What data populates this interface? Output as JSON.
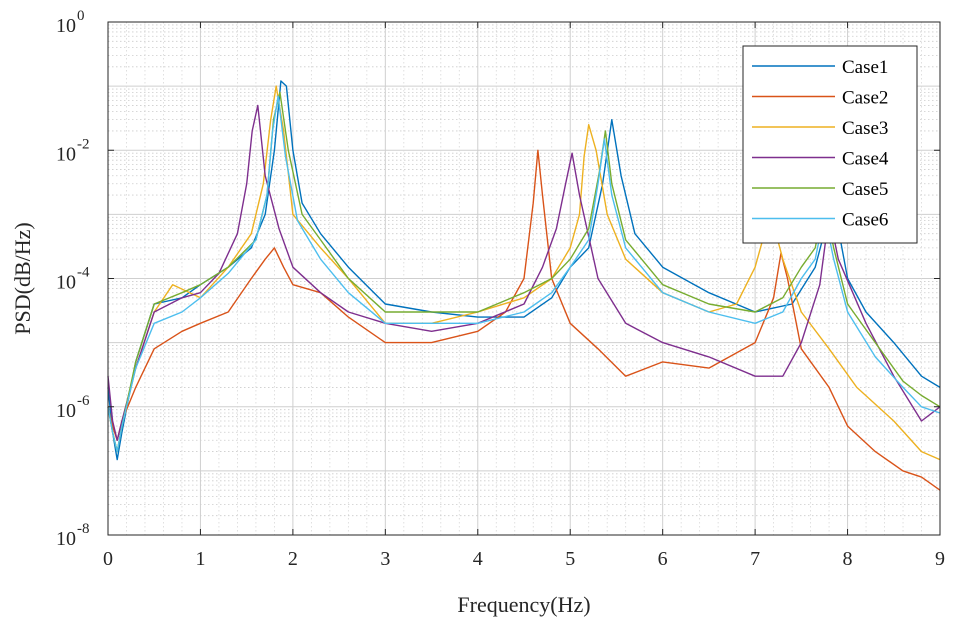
{
  "chart_data": {
    "type": "line",
    "title": "",
    "xlabel": "Frequency(Hz)",
    "ylabel": "PSD(dB/Hz)",
    "xlim": [
      0,
      9
    ],
    "ylim": [
      1e-08,
      1
    ],
    "yscale": "log",
    "grid": "major and minor, dotted",
    "legend_position": "top-right",
    "x_ticks": [
      "0",
      "1",
      "2",
      "3",
      "4",
      "5",
      "6",
      "7",
      "8",
      "9"
    ],
    "y_ticks": [
      {
        "base": "10",
        "exp": "-8",
        "value": 1e-08
      },
      {
        "base": "10",
        "exp": "-6",
        "value": 1e-06
      },
      {
        "base": "10",
        "exp": "-4",
        "value": 0.0001
      },
      {
        "base": "10",
        "exp": "-2",
        "value": 0.01
      },
      {
        "base": "10",
        "exp": "0",
        "value": 1
      }
    ],
    "series": [
      {
        "name": "Case1",
        "color": "#0072BD",
        "x": [
          0,
          0.05,
          0.1,
          0.15,
          0.3,
          0.5,
          0.8,
          1.0,
          1.3,
          1.55,
          1.7,
          1.8,
          1.87,
          1.93,
          2.0,
          2.1,
          2.3,
          2.6,
          3.0,
          3.5,
          4.0,
          4.5,
          4.8,
          5.0,
          5.2,
          5.35,
          5.45,
          5.55,
          5.7,
          6.0,
          6.5,
          7.0,
          7.4,
          7.65,
          7.8,
          7.9,
          8.0,
          8.2,
          8.5,
          8.8,
          9.0
        ],
        "y": [
          2e-06,
          4e-07,
          1.5e-07,
          4e-07,
          5e-06,
          4e-05,
          5e-05,
          8e-05,
          0.00015,
          0.0003,
          0.001,
          0.01,
          0.12,
          0.1,
          0.01,
          0.0015,
          0.0005,
          0.00015,
          4e-05,
          3e-05,
          2.5e-05,
          2.5e-05,
          5e-05,
          0.00015,
          0.0003,
          0.003,
          0.03,
          0.004,
          0.0005,
          0.00015,
          6e-05,
          3e-05,
          4e-05,
          0.00015,
          0.001,
          0.0006,
          0.0001,
          3e-05,
          1e-05,
          3e-06,
          2e-06
        ]
      },
      {
        "name": "Case2",
        "color": "#D95319",
        "x": [
          0,
          0.05,
          0.1,
          0.15,
          0.3,
          0.5,
          0.8,
          1.0,
          1.3,
          1.55,
          1.7,
          1.8,
          1.9,
          2.0,
          2.3,
          2.6,
          3.0,
          3.5,
          4.0,
          4.3,
          4.5,
          4.6,
          4.65,
          4.7,
          4.8,
          5.0,
          5.3,
          5.6,
          6.0,
          6.5,
          7.0,
          7.2,
          7.28,
          7.35,
          7.5,
          7.8,
          8.0,
          8.3,
          8.6,
          8.8,
          9.0
        ],
        "y": [
          1e-06,
          5e-07,
          3e-07,
          6e-07,
          2e-06,
          8e-06,
          1.5e-05,
          2e-05,
          3e-05,
          0.0001,
          0.0002,
          0.0003,
          0.00015,
          8e-05,
          6e-05,
          2.5e-05,
          1e-05,
          1e-05,
          1.5e-05,
          3e-05,
          0.0001,
          0.0015,
          0.01,
          0.002,
          0.0001,
          2e-05,
          8e-06,
          3e-06,
          5e-06,
          4e-06,
          1e-05,
          5e-05,
          0.00025,
          0.0001,
          8e-06,
          2e-06,
          5e-07,
          2e-07,
          1e-07,
          8e-08,
          5e-08
        ]
      },
      {
        "name": "Case3",
        "color": "#EDB120",
        "x": [
          0,
          0.05,
          0.1,
          0.15,
          0.3,
          0.5,
          0.7,
          1.0,
          1.3,
          1.55,
          1.68,
          1.76,
          1.82,
          1.9,
          2.0,
          2.3,
          2.6,
          3.0,
          3.5,
          4.0,
          4.5,
          4.8,
          5.0,
          5.1,
          5.15,
          5.2,
          5.28,
          5.4,
          5.6,
          6.0,
          6.5,
          6.8,
          7.0,
          7.1,
          7.2,
          7.3,
          7.5,
          7.8,
          8.1,
          8.5,
          8.8,
          9.0
        ],
        "y": [
          1e-06,
          4e-07,
          2e-07,
          5e-07,
          4e-06,
          3e-05,
          8e-05,
          5e-05,
          0.00015,
          0.0005,
          0.003,
          0.03,
          0.1,
          0.02,
          0.001,
          0.0003,
          0.0001,
          2e-05,
          2e-05,
          3e-05,
          5e-05,
          0.0001,
          0.0003,
          0.001,
          0.008,
          0.025,
          0.01,
          0.001,
          0.0002,
          6e-05,
          3e-05,
          4e-05,
          0.00015,
          0.0005,
          0.0007,
          0.0002,
          3e-05,
          8e-06,
          2e-06,
          6e-07,
          2e-07,
          1.5e-07
        ]
      },
      {
        "name": "Case4",
        "color": "#7E2F8E",
        "x": [
          0,
          0.05,
          0.1,
          0.15,
          0.3,
          0.5,
          0.8,
          1.0,
          1.2,
          1.4,
          1.5,
          1.56,
          1.62,
          1.7,
          1.85,
          2.0,
          2.3,
          2.6,
          3.0,
          3.5,
          4.0,
          4.5,
          4.7,
          4.85,
          4.95,
          5.02,
          5.1,
          5.3,
          5.6,
          6.0,
          6.5,
          7.0,
          7.3,
          7.5,
          7.7,
          7.8,
          7.9,
          8.2,
          8.5,
          8.8,
          9.0
        ],
        "y": [
          3e-06,
          6e-07,
          3e-07,
          6e-07,
          4e-06,
          3e-05,
          5e-05,
          6e-05,
          0.00012,
          0.0005,
          0.003,
          0.02,
          0.05,
          0.004,
          0.0006,
          0.00015,
          6e-05,
          3e-05,
          2e-05,
          1.5e-05,
          2e-05,
          4e-05,
          0.00015,
          0.0006,
          0.003,
          0.009,
          0.002,
          0.0001,
          2e-05,
          1e-05,
          6e-06,
          3e-06,
          3e-06,
          1e-05,
          8e-05,
          0.001,
          0.0002,
          2e-05,
          3e-06,
          6e-07,
          1e-06
        ]
      },
      {
        "name": "Case5",
        "color": "#77AC30",
        "x": [
          0,
          0.05,
          0.1,
          0.15,
          0.3,
          0.5,
          0.8,
          1.0,
          1.3,
          1.6,
          1.72,
          1.79,
          1.86,
          1.95,
          2.1,
          2.3,
          2.6,
          3.0,
          3.5,
          4.0,
          4.5,
          4.8,
          5.0,
          5.2,
          5.32,
          5.38,
          5.45,
          5.6,
          6.0,
          6.5,
          7.0,
          7.3,
          7.5,
          7.65,
          7.75,
          7.85,
          8.0,
          8.3,
          8.6,
          8.8,
          9.0
        ],
        "y": [
          1e-06,
          4e-07,
          2e-07,
          5e-07,
          5e-06,
          4e-05,
          6e-05,
          8e-05,
          0.00015,
          0.0004,
          0.002,
          0.03,
          0.08,
          0.01,
          0.001,
          0.0004,
          0.0001,
          3e-05,
          3e-05,
          3e-05,
          6e-05,
          0.0001,
          0.0002,
          0.0006,
          0.005,
          0.02,
          0.003,
          0.0004,
          8e-05,
          4e-05,
          3e-05,
          5e-05,
          0.00015,
          0.0003,
          0.0015,
          0.0003,
          4e-05,
          1e-05,
          2.5e-06,
          1.5e-06,
          1e-06
        ]
      },
      {
        "name": "Case6",
        "color": "#4DBEEE",
        "x": [
          0,
          0.05,
          0.1,
          0.15,
          0.3,
          0.5,
          0.8,
          1.0,
          1.3,
          1.6,
          1.72,
          1.78,
          1.84,
          1.92,
          2.05,
          2.3,
          2.6,
          3.0,
          3.5,
          4.0,
          4.5,
          4.8,
          5.0,
          5.2,
          5.3,
          5.37,
          5.45,
          5.6,
          6.0,
          6.5,
          7.0,
          7.3,
          7.5,
          7.65,
          7.75,
          7.85,
          8.0,
          8.3,
          8.6,
          8.8,
          9.0
        ],
        "y": [
          1e-06,
          4e-07,
          2e-07,
          5e-07,
          4e-06,
          2e-05,
          3e-05,
          5e-05,
          0.00012,
          0.0004,
          0.002,
          0.02,
          0.07,
          0.008,
          0.0008,
          0.0002,
          6e-05,
          2e-05,
          2e-05,
          2e-05,
          3e-05,
          6e-05,
          0.00015,
          0.0004,
          0.003,
          0.015,
          0.002,
          0.0003,
          6e-05,
          3e-05,
          2e-05,
          3e-05,
          0.0001,
          0.0002,
          0.001,
          0.0002,
          3e-05,
          6e-06,
          2e-06,
          1e-06,
          8e-07
        ]
      }
    ]
  }
}
